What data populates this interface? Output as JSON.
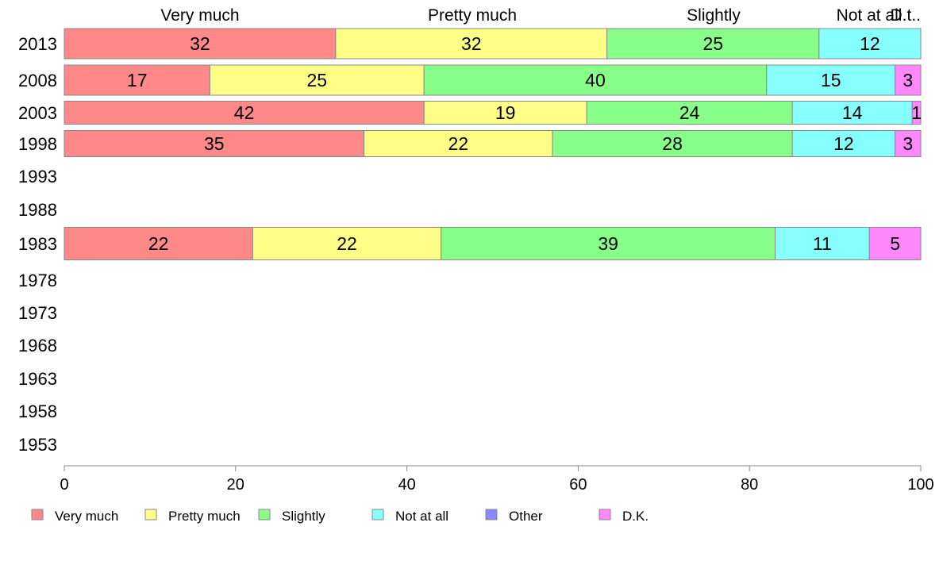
{
  "chart_data": {
    "type": "bar",
    "orientation": "horizontal",
    "stacked": true,
    "categories": [
      "2013",
      "2008",
      "2003",
      "1998",
      "1993",
      "1988",
      "1983",
      "1978",
      "1973",
      "1968",
      "1963",
      "1958",
      "1953"
    ],
    "series": [
      {
        "name": "Very much",
        "color": "#ff8888",
        "values": [
          32,
          17,
          42,
          35,
          null,
          null,
          22,
          null,
          null,
          null,
          null,
          null,
          null
        ]
      },
      {
        "name": "Pretty much",
        "color": "#ffff88",
        "values": [
          32,
          25,
          19,
          22,
          null,
          null,
          22,
          null,
          null,
          null,
          null,
          null,
          null
        ]
      },
      {
        "name": "Slightly",
        "color": "#88ff88",
        "values": [
          25,
          40,
          24,
          28,
          null,
          null,
          39,
          null,
          null,
          null,
          null,
          null,
          null
        ]
      },
      {
        "name": "Not at all",
        "color": "#88ffff",
        "values": [
          12,
          15,
          14,
          12,
          null,
          null,
          11,
          null,
          null,
          null,
          null,
          null,
          null
        ]
      },
      {
        "name": "Other",
        "color": "#8888ff",
        "values": [
          null,
          null,
          null,
          null,
          null,
          null,
          null,
          null,
          null,
          null,
          null,
          null,
          null
        ]
      },
      {
        "name": "D.K.",
        "color": "#ff88ff",
        "values": [
          null,
          3,
          1,
          3,
          null,
          null,
          5,
          null,
          null,
          null,
          null,
          null,
          null
        ]
      }
    ],
    "top_labels": [
      "Very much",
      "Pretty much",
      "Slightly",
      "Not at all",
      "D.t.."
    ],
    "xlim": [
      0,
      100
    ],
    "xticks": [
      "0",
      "20",
      "40",
      "60",
      "80",
      "100"
    ],
    "title": "",
    "xlabel": "",
    "ylabel": "",
    "grid": false,
    "legend_position": "bottom"
  }
}
